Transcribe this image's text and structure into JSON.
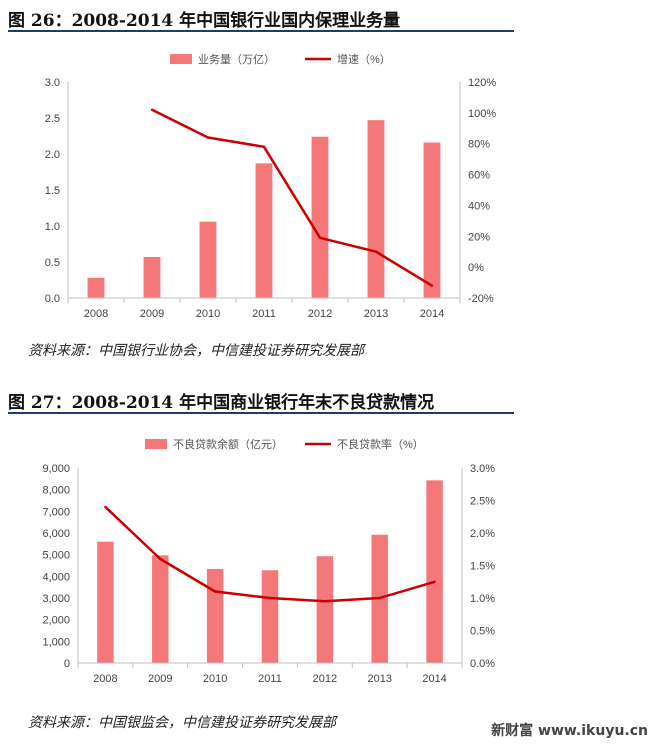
{
  "figure1": {
    "title": "图 26：2008-2014 年中国银行业国内保理业务量",
    "source": "资料来源：中国银行业协会，中信建投证券研究发展部"
  },
  "figure2": {
    "title": "图 27：2008-2014 年中国商业银行年末不良贷款情况",
    "source": "资料来源：中国银监会，中信建投证券研究发展部"
  },
  "watermark": "新财富 www.ikuyu.cn",
  "colors": {
    "bar": "#f4787a",
    "line": "#cc0000",
    "axis": "#bfbfbf",
    "title_rule": "#1f3a6b"
  },
  "chart_data": [
    {
      "type": "bar",
      "categories": [
        "2008",
        "2009",
        "2010",
        "2011",
        "2012",
        "2013",
        "2014"
      ],
      "series": [
        {
          "name": "业务量（万亿）",
          "type": "bar",
          "axis": "left",
          "values": [
            0.28,
            0.57,
            1.06,
            1.87,
            2.24,
            2.47,
            2.16
          ]
        },
        {
          "name": "增速（%）",
          "type": "line",
          "axis": "right",
          "values": [
            null,
            102,
            84,
            78,
            19,
            10,
            -12
          ]
        }
      ],
      "y_left": {
        "ylim": [
          0,
          3.0
        ],
        "ticks": [
          "0.0",
          "0.5",
          "1.0",
          "1.5",
          "2.0",
          "2.5",
          "3.0"
        ]
      },
      "y_right": {
        "ylim": [
          -20,
          120
        ],
        "ticks": [
          "-20%",
          "0%",
          "20%",
          "40%",
          "60%",
          "80%",
          "100%",
          "120%"
        ]
      },
      "legend_position": "top-center",
      "grid": false
    },
    {
      "type": "bar",
      "categories": [
        "2008",
        "2009",
        "2010",
        "2011",
        "2012",
        "2013",
        "2014"
      ],
      "series": [
        {
          "name": "不良贷款余额（亿元）",
          "type": "bar",
          "axis": "left",
          "values": [
            5600,
            4970,
            4340,
            4280,
            4930,
            5920,
            8430
          ]
        },
        {
          "name": "不良贷款率（%）",
          "type": "line",
          "axis": "right",
          "values": [
            2.4,
            1.6,
            1.1,
            1.0,
            0.95,
            1.0,
            1.25
          ]
        }
      ],
      "y_left": {
        "ylim": [
          0,
          9000
        ],
        "ticks": [
          "0",
          "1,000",
          "2,000",
          "3,000",
          "4,000",
          "5,000",
          "6,000",
          "7,000",
          "8,000",
          "9,000"
        ]
      },
      "y_right": {
        "ylim": [
          0,
          3.0
        ],
        "ticks": [
          "0.0%",
          "0.5%",
          "1.0%",
          "1.5%",
          "2.0%",
          "2.5%",
          "3.0%"
        ]
      },
      "legend_position": "top-center",
      "grid": false
    }
  ]
}
